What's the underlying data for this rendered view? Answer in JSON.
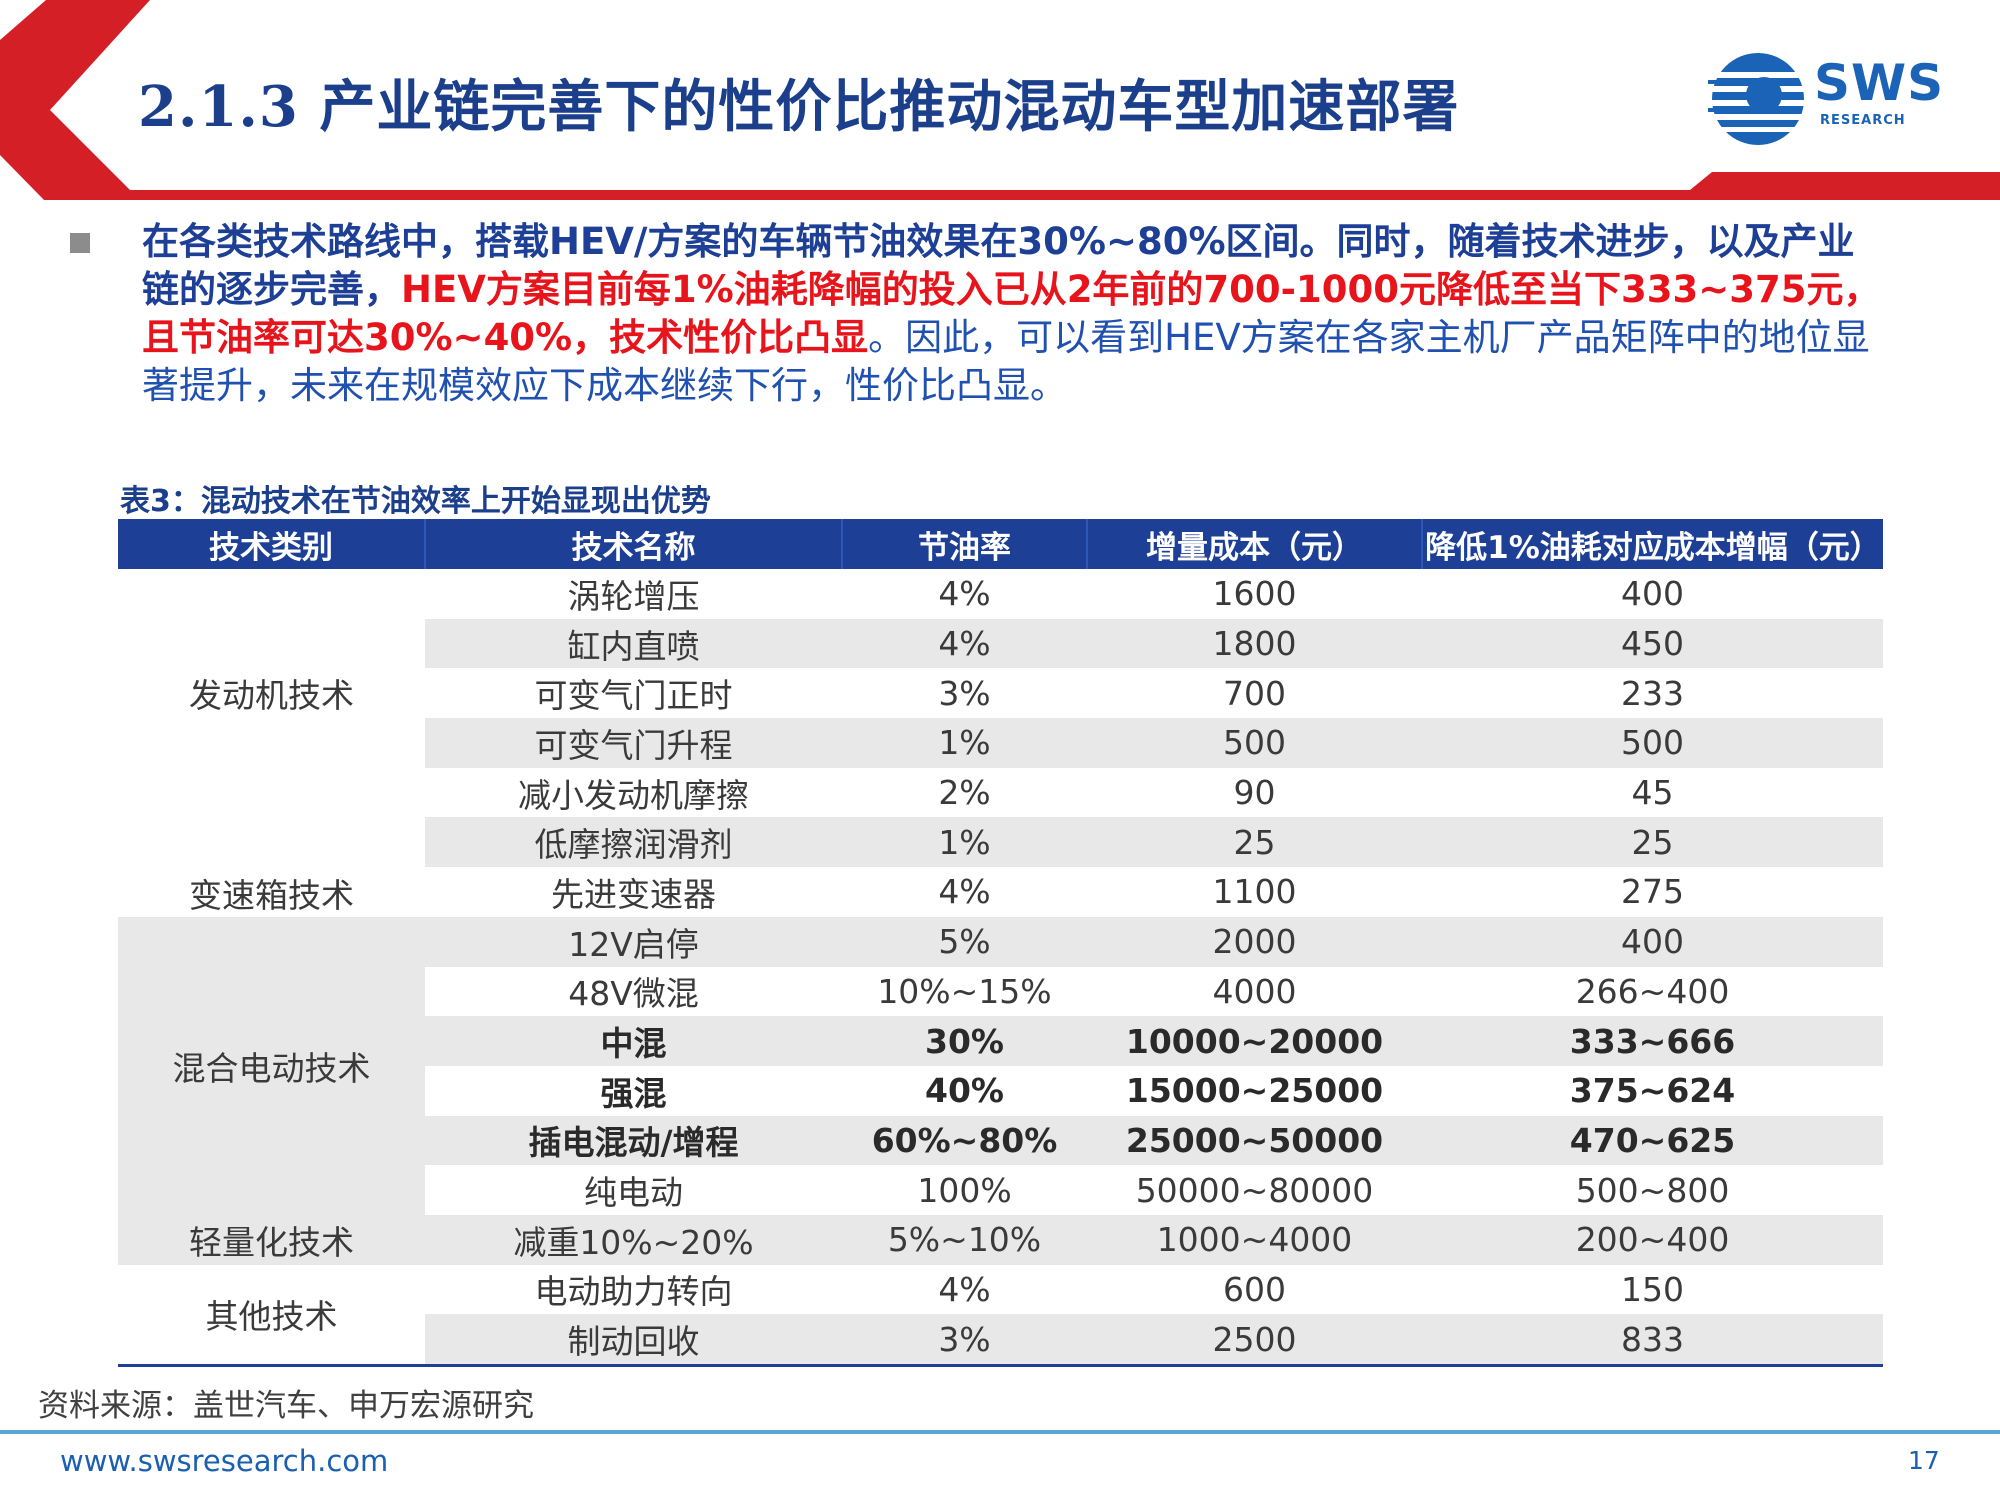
{
  "title": "2.1.3 产业链完善下的性价比推动混动车型加速部署",
  "logo": {
    "text": "SWS",
    "subtext": "RESEARCH"
  },
  "summary": {
    "part1": "在各类技术路线中，搭载HEV/方案的车辆节油效果在30%~80%区间。同时，随着技术进步，以及产业链的逐步完善，",
    "part2": "HEV方案目前每1%油耗降幅的投入已从2年前的700-1000元降低至当下333~375元，且节油率可达30%~40%，技术性价比凸显",
    "part3": "。因此，可以看到HEV方案在各家主机厂产品矩阵中的地位显著提升，未来在规模效应下成本继续下行，性价比凸显。"
  },
  "table": {
    "caption": "表3：混动技术在节油效率上开始显现出优势",
    "headers": [
      "技术类别",
      "技术名称",
      "节油率",
      "增量成本（元）",
      "降低1%油耗对应成本增幅（元）"
    ],
    "categories": [
      "发动机技术",
      "变速箱技术",
      "混合电动技术",
      "轻量化技术",
      "其他技术"
    ],
    "rows": [
      [
        "涡轮增压",
        "4%",
        "1600",
        "400"
      ],
      [
        "缸内直喷",
        "4%",
        "1800",
        "450"
      ],
      [
        "可变气门正时",
        "3%",
        "700",
        "233"
      ],
      [
        "可变气门升程",
        "1%",
        "500",
        "500"
      ],
      [
        "减小发动机摩擦",
        "2%",
        "90",
        "45"
      ],
      [
        "低摩擦润滑剂",
        "1%",
        "25",
        "25"
      ],
      [
        "先进变速器",
        "4%",
        "1100",
        "275"
      ],
      [
        "12V启停",
        "5%",
        "2000",
        "400"
      ],
      [
        "48V微混",
        "10%~15%",
        "4000",
        "266~400"
      ],
      [
        "中混",
        "30%",
        "10000~20000",
        "333~666"
      ],
      [
        "强混",
        "40%",
        "15000~25000",
        "375~624"
      ],
      [
        "插电混动/增程",
        "60%~80%",
        "25000~50000",
        "470~625"
      ],
      [
        "纯电动",
        "100%",
        "50000~80000",
        "500~800"
      ],
      [
        "减重10%~20%",
        "5%~10%",
        "1000~4000",
        "200~400"
      ],
      [
        "电动助力转向",
        "4%",
        "600",
        "150"
      ],
      [
        "制动回收",
        "3%",
        "2500",
        "833"
      ]
    ]
  },
  "source": "资料来源：盖世汽车、申万宏源研究",
  "footer": {
    "url": "www.swsresearch.com",
    "page": "17"
  }
}
